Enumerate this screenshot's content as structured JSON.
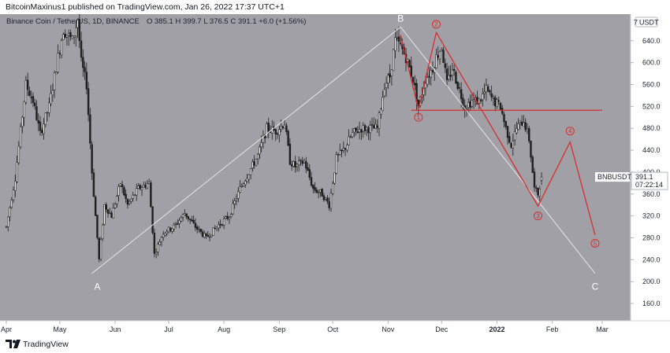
{
  "header": {
    "text": "BitcoinMaxinus1 published on TradingView.com, Jan 26, 2022 17:37 UTC+1"
  },
  "footer": {
    "brand": "TradingView",
    "logo_icon": "tradingview-logo-icon"
  },
  "legend": {
    "pair": "Binance Coin / TetherUS, 1D, BINANCE",
    "ohlc": "O 385.1  H 399.7  L 376.5  C 391.1  +6.0 (+1.56%)"
  },
  "price_tag": {
    "symbol": "BNBUSDT",
    "price": "391.1",
    "countdown": "07:22:14"
  },
  "colors": {
    "background": "#a0a0a6",
    "candles": "#1f1f1f",
    "wave_lines": "#d32f2f",
    "trend_lines": "#e8e8e8",
    "horizontal_line": "#d32f2f"
  },
  "chart_data": {
    "type": "candlestick",
    "title": "Binance Coin / TetherUS, 1D, BINANCE",
    "currency_unit": "USDT",
    "ylim": [
      140,
      710
    ],
    "y_ticks": [
      160,
      200,
      240,
      280,
      320,
      360,
      400,
      440,
      480,
      520,
      560,
      600,
      640,
      680
    ],
    "y_tick_labels": [
      "160.0",
      "200.0",
      "240.0",
      "280.0",
      "320.0",
      "360.0",
      "400.0",
      "440.0",
      "480.0",
      "520.0",
      "560.0",
      "600.0",
      "640.0",
      "680.0"
    ],
    "top_tick_label": "7",
    "x_range": [
      "2021-04-01",
      "2022-03-05"
    ],
    "x_ticks": [
      {
        "date": "2021-04-01",
        "label": "Apr"
      },
      {
        "date": "2021-05-01",
        "label": "May"
      },
      {
        "date": "2021-06-01",
        "label": "Jun"
      },
      {
        "date": "2021-07-01",
        "label": "Jul"
      },
      {
        "date": "2021-08-01",
        "label": "Aug"
      },
      {
        "date": "2021-09-01",
        "label": "Sep"
      },
      {
        "date": "2021-10-01",
        "label": "Oct"
      },
      {
        "date": "2021-11-01",
        "label": "Nov"
      },
      {
        "date": "2021-12-01",
        "label": "Dec"
      },
      {
        "date": "2022-01-01",
        "label": "2022"
      },
      {
        "date": "2022-02-01",
        "label": "Feb"
      },
      {
        "date": "2022-03-01",
        "label": "Mar"
      }
    ],
    "price_path": [
      [
        "2021-04-01",
        300
      ],
      [
        "2021-04-06",
        390
      ],
      [
        "2021-04-12",
        560
      ],
      [
        "2021-04-16",
        530
      ],
      [
        "2021-04-20",
        470
      ],
      [
        "2021-04-25",
        520
      ],
      [
        "2021-04-30",
        610
      ],
      [
        "2021-05-03",
        660
      ],
      [
        "2021-05-08",
        640
      ],
      [
        "2021-05-11",
        680
      ],
      [
        "2021-05-13",
        600
      ],
      [
        "2021-05-16",
        560
      ],
      [
        "2021-05-19",
        400
      ],
      [
        "2021-05-23",
        240
      ],
      [
        "2021-05-26",
        340
      ],
      [
        "2021-05-30",
        320
      ],
      [
        "2021-06-04",
        380
      ],
      [
        "2021-06-08",
        340
      ],
      [
        "2021-06-14",
        370
      ],
      [
        "2021-06-20",
        380
      ],
      [
        "2021-06-23",
        250
      ],
      [
        "2021-06-28",
        290
      ],
      [
        "2021-07-04",
        300
      ],
      [
        "2021-07-10",
        325
      ],
      [
        "2021-07-16",
        300
      ],
      [
        "2021-07-22",
        280
      ],
      [
        "2021-07-28",
        300
      ],
      [
        "2021-08-04",
        320
      ],
      [
        "2021-08-10",
        370
      ],
      [
        "2021-08-15",
        400
      ],
      [
        "2021-08-20",
        430
      ],
      [
        "2021-08-25",
        480
      ],
      [
        "2021-08-30",
        475
      ],
      [
        "2021-09-04",
        490
      ],
      [
        "2021-09-07",
        420
      ],
      [
        "2021-09-10",
        410
      ],
      [
        "2021-09-15",
        420
      ],
      [
        "2021-09-20",
        370
      ],
      [
        "2021-09-25",
        360
      ],
      [
        "2021-09-29",
        340
      ],
      [
        "2021-10-03",
        425
      ],
      [
        "2021-10-07",
        440
      ],
      [
        "2021-10-12",
        470
      ],
      [
        "2021-10-17",
        480
      ],
      [
        "2021-10-22",
        480
      ],
      [
        "2021-10-26",
        480
      ],
      [
        "2021-10-30",
        560
      ],
      [
        "2021-11-02",
        575
      ],
      [
        "2021-11-05",
        640
      ],
      [
        "2021-11-08",
        630
      ],
      [
        "2021-11-11",
        610
      ],
      [
        "2021-11-15",
        570
      ],
      [
        "2021-11-18",
        520
      ],
      [
        "2021-11-22",
        570
      ],
      [
        "2021-11-26",
        590
      ],
      [
        "2021-11-28",
        610
      ],
      [
        "2021-12-01",
        630
      ],
      [
        "2021-12-04",
        560
      ],
      [
        "2021-12-07",
        590
      ],
      [
        "2021-12-10",
        560
      ],
      [
        "2021-12-14",
        520
      ],
      [
        "2021-12-18",
        530
      ],
      [
        "2021-12-22",
        530
      ],
      [
        "2021-12-26",
        550
      ],
      [
        "2021-12-30",
        530
      ],
      [
        "2022-01-03",
        520
      ],
      [
        "2022-01-06",
        480
      ],
      [
        "2022-01-09",
        450
      ],
      [
        "2022-01-12",
        480
      ],
      [
        "2022-01-16",
        495
      ],
      [
        "2022-01-19",
        460
      ],
      [
        "2022-01-22",
        370
      ],
      [
        "2022-01-24",
        360
      ],
      [
        "2022-01-26",
        391.1
      ]
    ],
    "last_candle": {
      "date": "2022-01-26",
      "open": 385.1,
      "high": 399.7,
      "low": 376.5,
      "close": 391.1
    },
    "trend_lines": [
      {
        "from": [
          "2021-05-19",
          215
        ],
        "to": [
          "2021-11-08",
          665
        ]
      },
      {
        "from": [
          "2021-11-08",
          665
        ],
        "to": [
          "2022-02-25",
          215
        ]
      }
    ],
    "abc_labels": [
      {
        "label": "A",
        "date": "2021-05-22",
        "price": 185
      },
      {
        "label": "B",
        "date": "2021-11-08",
        "price": 675
      },
      {
        "label": "C",
        "date": "2022-02-25",
        "price": 185
      }
    ],
    "wave_path": [
      [
        "2021-11-08",
        650
      ],
      [
        "2021-11-18",
        515
      ],
      [
        "2021-11-28",
        655
      ],
      [
        "2022-01-24",
        338
      ],
      [
        "2022-02-11",
        455
      ],
      [
        "2022-02-25",
        285
      ]
    ],
    "wave_labels": [
      {
        "label": "1",
        "date": "2021-11-18",
        "price": 500
      },
      {
        "label": "2",
        "date": "2021-11-28",
        "price": 670
      },
      {
        "label": "3",
        "date": "2022-01-24",
        "price": 320
      },
      {
        "label": "4",
        "date": "2022-02-11",
        "price": 475
      },
      {
        "label": "5",
        "date": "2022-02-25",
        "price": 270
      }
    ],
    "horizontal_level": {
      "price": 513,
      "from": "2021-11-14",
      "to": "2022-03-01"
    }
  }
}
